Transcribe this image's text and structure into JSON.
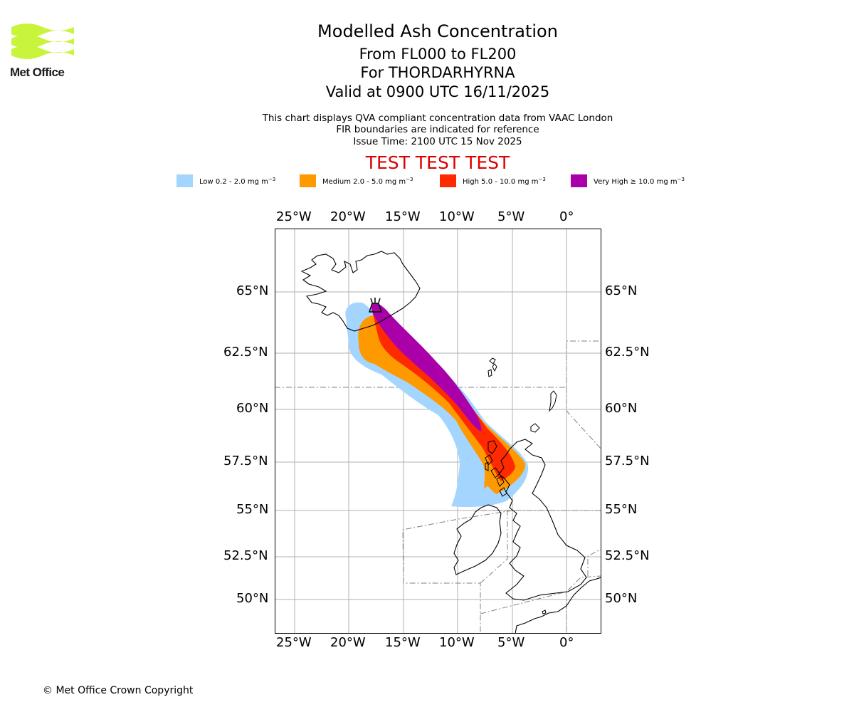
{
  "header": {
    "title": "Modelled Ash Concentration",
    "levels": "From FL000 to FL200",
    "volcano": "For THORDARHYRNA",
    "valid": "Valid at 0900 UTC 16/11/2025",
    "desc_line1": "This chart displays QVA compliant concentration data from VAAC London",
    "desc_line2": "FIR boundaries are indicated for reference",
    "issue_time": "Issue Time: 2100 UTC 15 Nov 2025",
    "test_banner": "TEST TEST TEST"
  },
  "logo": {
    "text": "Met Office",
    "color": "#c8f53c"
  },
  "legend": [
    {
      "label": "Low 0.2 - 2.0 mg m",
      "exp": "−3",
      "color": "#a3d5ff"
    },
    {
      "label": "Medium 2.0 - 5.0 mg m",
      "exp": "−3",
      "color": "#ff9900"
    },
    {
      "label": "High 5.0 - 10.0 mg m",
      "exp": "−3",
      "color": "#ff2a00"
    },
    {
      "label": "Very High ≥ 10.0 mg m",
      "exp": "−3",
      "color": "#aa00aa"
    }
  ],
  "map": {
    "lon_ticks": [
      "25°W",
      "20°W",
      "15°W",
      "10°W",
      "5°W",
      "0°"
    ],
    "lat_ticks": [
      "65°N",
      "62.5°N",
      "60°N",
      "57.5°N",
      "55°N",
      "52.5°N",
      "50°N"
    ],
    "gridline_color": "#b0b0b0",
    "coast_color": "#000000",
    "fir_color": "#808080"
  },
  "footer": {
    "copyright": "© Met Office Crown Copyright"
  }
}
